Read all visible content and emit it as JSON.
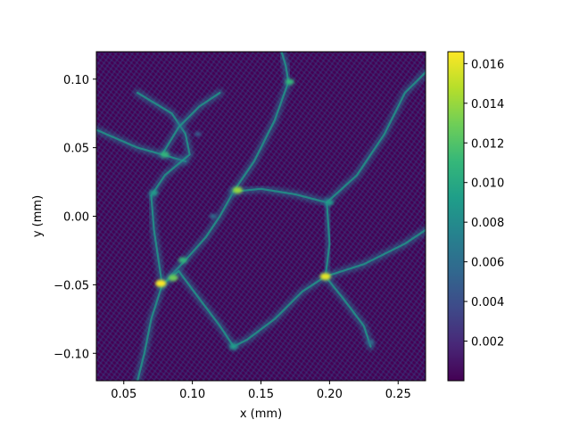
{
  "chart_data": {
    "type": "heatmap",
    "colormap": "viridis",
    "xlabel": "x (mm)",
    "ylabel": "y (mm)",
    "xlim": [
      0.03,
      0.27
    ],
    "ylim": [
      -0.12,
      0.12
    ],
    "x_ticks": [
      0.05,
      0.1,
      0.15,
      0.2,
      0.25
    ],
    "x_tick_labels": [
      "0.05",
      "0.10",
      "0.15",
      "0.20",
      "0.25"
    ],
    "y_ticks": [
      0.1,
      0.05,
      0.0,
      -0.05,
      -0.1
    ],
    "y_tick_labels": [
      "0.10",
      "0.05",
      "0.00",
      "−0.05",
      "−0.10"
    ],
    "colorbar": {
      "range": [
        0.0,
        0.0166
      ],
      "ticks": [
        0.002,
        0.004,
        0.006,
        0.008,
        0.01,
        0.012,
        0.014,
        0.016
      ],
      "tick_labels": [
        "0.002",
        "0.004",
        "0.006",
        "0.008",
        "0.010",
        "0.012",
        "0.014",
        "0.016"
      ]
    },
    "features": {
      "ridges": [
        [
          [
            0.03,
            0.063
          ],
          [
            0.06,
            0.05
          ],
          [
            0.078,
            0.045
          ],
          [
            0.095,
            0.04
          ]
        ],
        [
          [
            0.06,
            0.09
          ],
          [
            0.085,
            0.075
          ],
          [
            0.095,
            0.06
          ],
          [
            0.098,
            0.045
          ],
          [
            0.08,
            0.03
          ],
          [
            0.07,
            0.015
          ]
        ],
        [
          [
            0.078,
            0.045
          ],
          [
            0.09,
            0.065
          ],
          [
            0.105,
            0.08
          ],
          [
            0.12,
            0.09
          ]
        ],
        [
          [
            0.07,
            0.015
          ],
          [
            0.072,
            -0.01
          ],
          [
            0.075,
            -0.03
          ],
          [
            0.078,
            -0.05
          ]
        ],
        [
          [
            0.078,
            -0.05
          ],
          [
            0.095,
            -0.032
          ],
          [
            0.11,
            -0.015
          ],
          [
            0.12,
            0.0
          ],
          [
            0.13,
            0.018
          ]
        ],
        [
          [
            0.13,
            0.018
          ],
          [
            0.15,
            0.02
          ],
          [
            0.175,
            0.016
          ],
          [
            0.198,
            0.01
          ]
        ],
        [
          [
            0.198,
            0.01
          ],
          [
            0.2,
            -0.02
          ],
          [
            0.197,
            -0.044
          ]
        ],
        [
          [
            0.197,
            -0.044
          ],
          [
            0.18,
            -0.055
          ],
          [
            0.16,
            -0.075
          ],
          [
            0.14,
            -0.09
          ],
          [
            0.13,
            -0.095
          ]
        ],
        [
          [
            0.13,
            -0.095
          ],
          [
            0.12,
            -0.08
          ],
          [
            0.105,
            -0.06
          ],
          [
            0.09,
            -0.04
          ],
          [
            0.078,
            -0.05
          ]
        ],
        [
          [
            0.13,
            0.018
          ],
          [
            0.145,
            0.04
          ],
          [
            0.16,
            0.07
          ],
          [
            0.17,
            0.098
          ]
        ],
        [
          [
            0.17,
            0.098
          ],
          [
            0.168,
            0.11
          ],
          [
            0.165,
            0.12
          ]
        ],
        [
          [
            0.198,
            0.01
          ],
          [
            0.22,
            0.03
          ],
          [
            0.24,
            0.06
          ],
          [
            0.255,
            0.09
          ],
          [
            0.27,
            0.105
          ]
        ],
        [
          [
            0.197,
            -0.044
          ],
          [
            0.21,
            -0.06
          ],
          [
            0.225,
            -0.08
          ],
          [
            0.23,
            -0.095
          ]
        ],
        [
          [
            0.078,
            -0.05
          ],
          [
            0.07,
            -0.075
          ],
          [
            0.065,
            -0.1
          ],
          [
            0.06,
            -0.12
          ]
        ],
        [
          [
            0.197,
            -0.044
          ],
          [
            0.225,
            -0.035
          ],
          [
            0.255,
            -0.02
          ],
          [
            0.27,
            -0.01
          ]
        ]
      ],
      "hotspots": [
        {
          "x": 0.077,
          "y": -0.049,
          "v": 0.0166
        },
        {
          "x": 0.086,
          "y": -0.045,
          "v": 0.013
        },
        {
          "x": 0.093,
          "y": -0.032,
          "v": 0.011
        },
        {
          "x": 0.08,
          "y": 0.045,
          "v": 0.011
        },
        {
          "x": 0.072,
          "y": 0.017,
          "v": 0.009
        },
        {
          "x": 0.133,
          "y": 0.019,
          "v": 0.014
        },
        {
          "x": 0.171,
          "y": 0.098,
          "v": 0.011
        },
        {
          "x": 0.197,
          "y": -0.044,
          "v": 0.016
        },
        {
          "x": 0.2,
          "y": 0.01,
          "v": 0.009
        },
        {
          "x": 0.13,
          "y": -0.095,
          "v": 0.009
        },
        {
          "x": 0.23,
          "y": -0.092,
          "v": 0.006
        },
        {
          "x": 0.115,
          "y": 0.0,
          "v": 0.006
        },
        {
          "x": 0.104,
          "y": 0.06,
          "v": 0.005
        }
      ]
    }
  }
}
